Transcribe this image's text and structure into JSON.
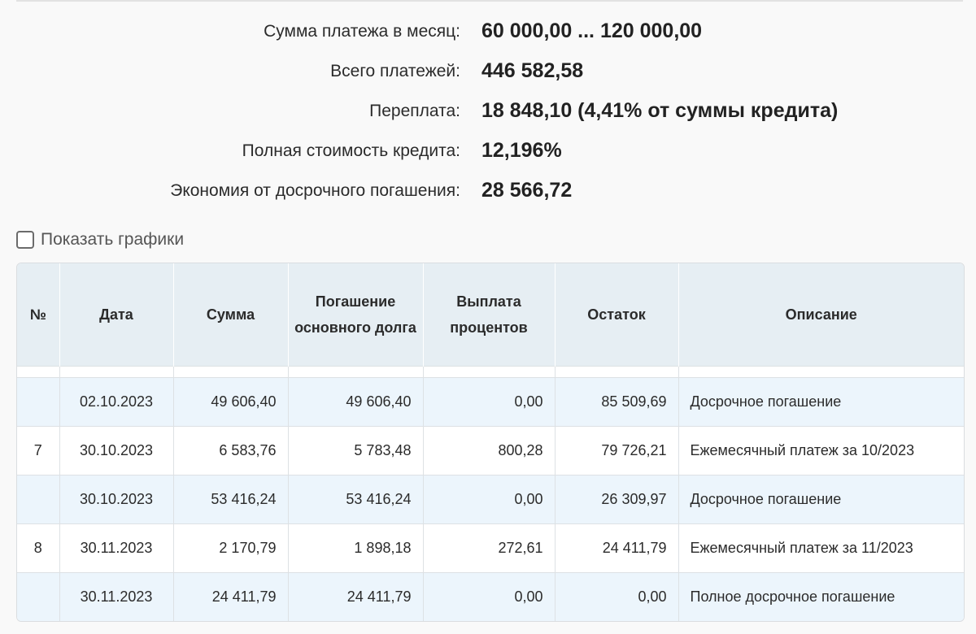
{
  "summary": [
    {
      "label": "Сумма платежа в месяц:",
      "value": "60 000,00 ... 120 000,00"
    },
    {
      "label": "Всего платежей:",
      "value": "446 582,58"
    },
    {
      "label": "Переплата:",
      "value": "18 848,10 (4,41% от суммы кредита)"
    },
    {
      "label": "Полная стоимость кредита:",
      "value": "12,196%"
    },
    {
      "label": "Экономия от досрочного погашения:",
      "value": "28 566,72"
    }
  ],
  "show_charts": {
    "label": "Показать графики",
    "checked": false
  },
  "table": {
    "headers": {
      "num": "№",
      "date": "Дата",
      "sum": "Сумма",
      "principal": "Погашение основного долга",
      "interest": "Выплата процентов",
      "balance": "Остаток",
      "description": "Описание"
    },
    "rows": [
      {
        "num": "",
        "date": "02.10.2023",
        "sum": "49 606,40",
        "principal": "49 606,40",
        "interest": "0,00",
        "balance": "85 509,69",
        "description": "Досрочное погашение"
      },
      {
        "num": "7",
        "date": "30.10.2023",
        "sum": "6 583,76",
        "principal": "5 783,48",
        "interest": "800,28",
        "balance": "79 726,21",
        "description": "Ежемесячный платеж за 10/2023"
      },
      {
        "num": "",
        "date": "30.10.2023",
        "sum": "53 416,24",
        "principal": "53 416,24",
        "interest": "0,00",
        "balance": "26 309,97",
        "description": "Досрочное погашение"
      },
      {
        "num": "8",
        "date": "30.11.2023",
        "sum": "2 170,79",
        "principal": "1 898,18",
        "interest": "272,61",
        "balance": "24 411,79",
        "description": "Ежемесячный платеж за 11/2023"
      },
      {
        "num": "",
        "date": "30.11.2023",
        "sum": "24 411,79",
        "principal": "24 411,79",
        "interest": "0,00",
        "balance": "0,00",
        "description": "Полное досрочное погашение"
      }
    ]
  }
}
